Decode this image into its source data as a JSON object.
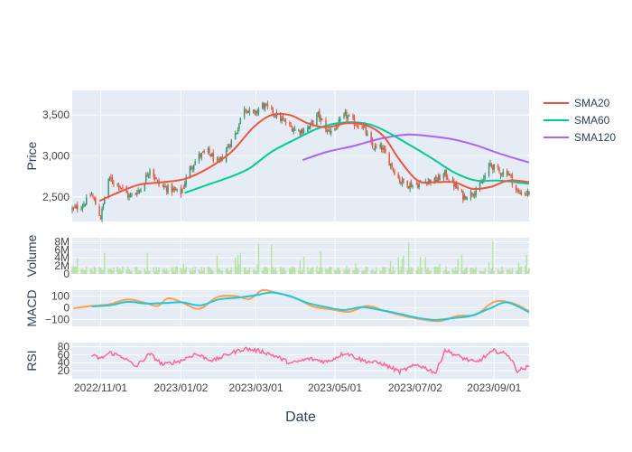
{
  "chart_data": {
    "type": "candlestick",
    "colors": {
      "up": "#3d9970",
      "down": "#ef553b",
      "sma20": "#ef553b",
      "sma60": "#00cc96",
      "sma120": "#ab63fa",
      "volume": "#b9e3a6",
      "macd": "#ff9f4a",
      "signal": "#22c7db",
      "rsi": "#ff6692",
      "panel_bg": "#e5ecf6",
      "grid": "#ffffff"
    },
    "x_axis": {
      "title": "Date",
      "range": [
        "2022-10-10",
        "2023-09-28"
      ],
      "ticks": [
        "2022/11/01",
        "2023/01/02",
        "2023/03/01",
        "2023/05/01",
        "2023/07/02",
        "2023/09/01"
      ]
    },
    "panels": [
      {
        "id": "price",
        "ylabel": "Price",
        "ylim": [
          2200,
          3800
        ],
        "ticks": [
          "2,500",
          "3,000",
          "3,500"
        ],
        "tick_values": [
          2500,
          3000,
          3500
        ]
      },
      {
        "id": "volume",
        "ylabel": "Volume",
        "ylim": [
          0,
          9000000
        ],
        "ticks": [
          "0",
          "2M",
          "4M",
          "6M",
          "8M"
        ],
        "tick_values": [
          0,
          2000000,
          4000000,
          6000000,
          8000000
        ]
      },
      {
        "id": "macd",
        "ylabel": "MACD",
        "ylim": [
          -160,
          150
        ],
        "ticks": [
          "−100",
          "0",
          "100"
        ],
        "tick_values": [
          -100,
          0,
          100
        ]
      },
      {
        "id": "rsi",
        "ylabel": "RSI",
        "ylim": [
          0,
          90
        ],
        "ticks": [
          "20",
          "40",
          "60",
          "80"
        ],
        "tick_values": [
          20,
          40,
          60,
          80
        ]
      }
    ],
    "legend": {
      "position": "top-right",
      "items": [
        {
          "name": "SMA20",
          "key": "sma20"
        },
        {
          "name": "SMA60",
          "key": "sma60"
        },
        {
          "name": "SMA120",
          "key": "sma120"
        }
      ]
    },
    "close_keypoints": [
      [
        "2022-10-11",
        2350
      ],
      [
        "2022-10-18",
        2400
      ],
      [
        "2022-10-25",
        2530
      ],
      [
        "2022-11-01",
        2250
      ],
      [
        "2022-11-07",
        2720
      ],
      [
        "2022-11-15",
        2650
      ],
      [
        "2022-11-23",
        2500
      ],
      [
        "2022-12-02",
        2600
      ],
      [
        "2022-12-09",
        2850
      ],
      [
        "2022-12-16",
        2650
      ],
      [
        "2022-12-23",
        2600
      ],
      [
        "2023-01-02",
        2550
      ],
      [
        "2023-01-09",
        2850
      ],
      [
        "2023-01-16",
        3000
      ],
      [
        "2023-01-23",
        3050
      ],
      [
        "2023-01-31",
        2900
      ],
      [
        "2023-02-07",
        3100
      ],
      [
        "2023-02-14",
        3300
      ],
      [
        "2023-02-20",
        3600
      ],
      [
        "2023-02-27",
        3500
      ],
      [
        "2023-03-06",
        3620
      ],
      [
        "2023-03-13",
        3550
      ],
      [
        "2023-03-20",
        3450
      ],
      [
        "2023-03-28",
        3350
      ],
      [
        "2023-04-04",
        3300
      ],
      [
        "2023-04-11",
        3350
      ],
      [
        "2023-04-18",
        3500
      ],
      [
        "2023-04-25",
        3300
      ],
      [
        "2023-05-02",
        3350
      ],
      [
        "2023-05-09",
        3500
      ],
      [
        "2023-05-16",
        3400
      ],
      [
        "2023-05-23",
        3350
      ],
      [
        "2023-05-30",
        3100
      ],
      [
        "2023-06-06",
        3100
      ],
      [
        "2023-06-13",
        2900
      ],
      [
        "2023-06-20",
        2700
      ],
      [
        "2023-06-27",
        2650
      ],
      [
        "2023-07-04",
        2650
      ],
      [
        "2023-07-11",
        2700
      ],
      [
        "2023-07-18",
        2700
      ],
      [
        "2023-07-25",
        2780
      ],
      [
        "2023-08-01",
        2650
      ],
      [
        "2023-08-08",
        2500
      ],
      [
        "2023-08-15",
        2550
      ],
      [
        "2023-08-22",
        2650
      ],
      [
        "2023-08-29",
        2900
      ],
      [
        "2023-09-05",
        2800
      ],
      [
        "2023-09-12",
        2800
      ],
      [
        "2023-09-19",
        2550
      ],
      [
        "2023-09-26",
        2550
      ]
    ],
    "sma20_points": [
      [
        "2022-10-31",
        2450
      ],
      [
        "2022-11-14",
        2550
      ],
      [
        "2022-12-01",
        2650
      ],
      [
        "2022-12-19",
        2680
      ],
      [
        "2023-01-05",
        2720
      ],
      [
        "2023-01-23",
        2850
      ],
      [
        "2023-02-10",
        3050
      ],
      [
        "2023-02-27",
        3350
      ],
      [
        "2023-03-13",
        3500
      ],
      [
        "2023-03-27",
        3500
      ],
      [
        "2023-04-10",
        3400
      ],
      [
        "2023-04-24",
        3350
      ],
      [
        "2023-05-10",
        3400
      ],
      [
        "2023-05-24",
        3380
      ],
      [
        "2023-06-07",
        3250
      ],
      [
        "2023-06-20",
        2950
      ],
      [
        "2023-07-04",
        2700
      ],
      [
        "2023-07-18",
        2680
      ],
      [
        "2023-08-01",
        2680
      ],
      [
        "2023-08-15",
        2600
      ],
      [
        "2023-08-29",
        2620
      ],
      [
        "2023-09-12",
        2700
      ],
      [
        "2023-09-28",
        2680
      ]
    ],
    "sma60_points": [
      [
        "2023-01-05",
        2550
      ],
      [
        "2023-01-23",
        2650
      ],
      [
        "2023-02-10",
        2750
      ],
      [
        "2023-02-24",
        2850
      ],
      [
        "2023-03-13",
        3050
      ],
      [
        "2023-03-31",
        3200
      ],
      [
        "2023-04-17",
        3330
      ],
      [
        "2023-05-03",
        3400
      ],
      [
        "2023-05-23",
        3400
      ],
      [
        "2023-06-07",
        3320
      ],
      [
        "2023-06-26",
        3150
      ],
      [
        "2023-07-14",
        2980
      ],
      [
        "2023-08-01",
        2800
      ],
      [
        "2023-08-18",
        2700
      ],
      [
        "2023-09-05",
        2700
      ],
      [
        "2023-09-28",
        2660
      ]
    ],
    "sma120_points": [
      [
        "2023-04-06",
        2950
      ],
      [
        "2023-04-25",
        3050
      ],
      [
        "2023-05-15",
        3120
      ],
      [
        "2023-06-05",
        3210
      ],
      [
        "2023-06-26",
        3260
      ],
      [
        "2023-07-14",
        3240
      ],
      [
        "2023-08-01",
        3200
      ],
      [
        "2023-08-18",
        3130
      ],
      [
        "2023-09-05",
        3030
      ],
      [
        "2023-09-28",
        2920
      ]
    ],
    "macd_points": [
      [
        "2022-10-11",
        -5
      ],
      [
        "2022-10-25",
        15
      ],
      [
        "2022-11-08",
        30
      ],
      [
        "2022-11-22",
        70
      ],
      [
        "2022-12-06",
        40
      ],
      [
        "2022-12-15",
        15
      ],
      [
        "2022-12-23",
        80
      ],
      [
        "2023-01-02",
        50
      ],
      [
        "2023-01-16",
        -10
      ],
      [
        "2023-01-30",
        90
      ],
      [
        "2023-02-13",
        100
      ],
      [
        "2023-02-24",
        75
      ],
      [
        "2023-03-06",
        150
      ],
      [
        "2023-03-17",
        125
      ],
      [
        "2023-03-31",
        85
      ],
      [
        "2023-04-14",
        10
      ],
      [
        "2023-04-28",
        -15
      ],
      [
        "2023-05-12",
        -35
      ],
      [
        "2023-05-26",
        15
      ],
      [
        "2023-06-09",
        -30
      ],
      [
        "2023-06-23",
        -70
      ],
      [
        "2023-07-07",
        -100
      ],
      [
        "2023-07-21",
        -115
      ],
      [
        "2023-08-04",
        -70
      ],
      [
        "2023-08-18",
        -60
      ],
      [
        "2023-09-01",
        50
      ],
      [
        "2023-09-15",
        40
      ],
      [
        "2023-09-28",
        -30
      ]
    ],
    "signal_points": [
      [
        "2022-10-25",
        10
      ],
      [
        "2022-11-08",
        20
      ],
      [
        "2022-11-22",
        50
      ],
      [
        "2022-12-06",
        35
      ],
      [
        "2022-12-20",
        40
      ],
      [
        "2023-01-03",
        45
      ],
      [
        "2023-01-17",
        20
      ],
      [
        "2023-01-31",
        70
      ],
      [
        "2023-02-14",
        85
      ],
      [
        "2023-02-28",
        105
      ],
      [
        "2023-03-13",
        130
      ],
      [
        "2023-03-27",
        100
      ],
      [
        "2023-04-10",
        40
      ],
      [
        "2023-04-24",
        5
      ],
      [
        "2023-05-08",
        -20
      ],
      [
        "2023-05-22",
        5
      ],
      [
        "2023-06-05",
        -20
      ],
      [
        "2023-06-19",
        -50
      ],
      [
        "2023-07-03",
        -85
      ],
      [
        "2023-07-17",
        -105
      ],
      [
        "2023-07-31",
        -90
      ],
      [
        "2023-08-14",
        -70
      ],
      [
        "2023-08-28",
        -10
      ],
      [
        "2023-09-11",
        45
      ],
      [
        "2023-09-28",
        -40
      ]
    ],
    "rsi_points": [
      [
        "2022-10-25",
        58
      ],
      [
        "2022-11-01",
        50
      ],
      [
        "2022-11-08",
        65
      ],
      [
        "2022-11-18",
        55
      ],
      [
        "2022-11-28",
        30
      ],
      [
        "2022-12-09",
        62
      ],
      [
        "2022-12-19",
        35
      ],
      [
        "2023-01-02",
        45
      ],
      [
        "2023-01-13",
        62
      ],
      [
        "2023-01-27",
        45
      ],
      [
        "2023-02-08",
        62
      ],
      [
        "2023-02-20",
        75
      ],
      [
        "2023-03-06",
        68
      ],
      [
        "2023-03-17",
        55
      ],
      [
        "2023-03-28",
        38
      ],
      [
        "2023-04-11",
        50
      ],
      [
        "2023-04-25",
        42
      ],
      [
        "2023-05-09",
        65
      ],
      [
        "2023-05-23",
        45
      ],
      [
        "2023-06-06",
        38
      ],
      [
        "2023-06-20",
        18
      ],
      [
        "2023-07-04",
        35
      ],
      [
        "2023-07-18",
        15
      ],
      [
        "2023-07-25",
        72
      ],
      [
        "2023-08-05",
        55
      ],
      [
        "2023-08-18",
        40
      ],
      [
        "2023-09-01",
        70
      ],
      [
        "2023-09-12",
        60
      ],
      [
        "2023-09-19",
        20
      ],
      [
        "2023-09-28",
        30
      ]
    ]
  }
}
